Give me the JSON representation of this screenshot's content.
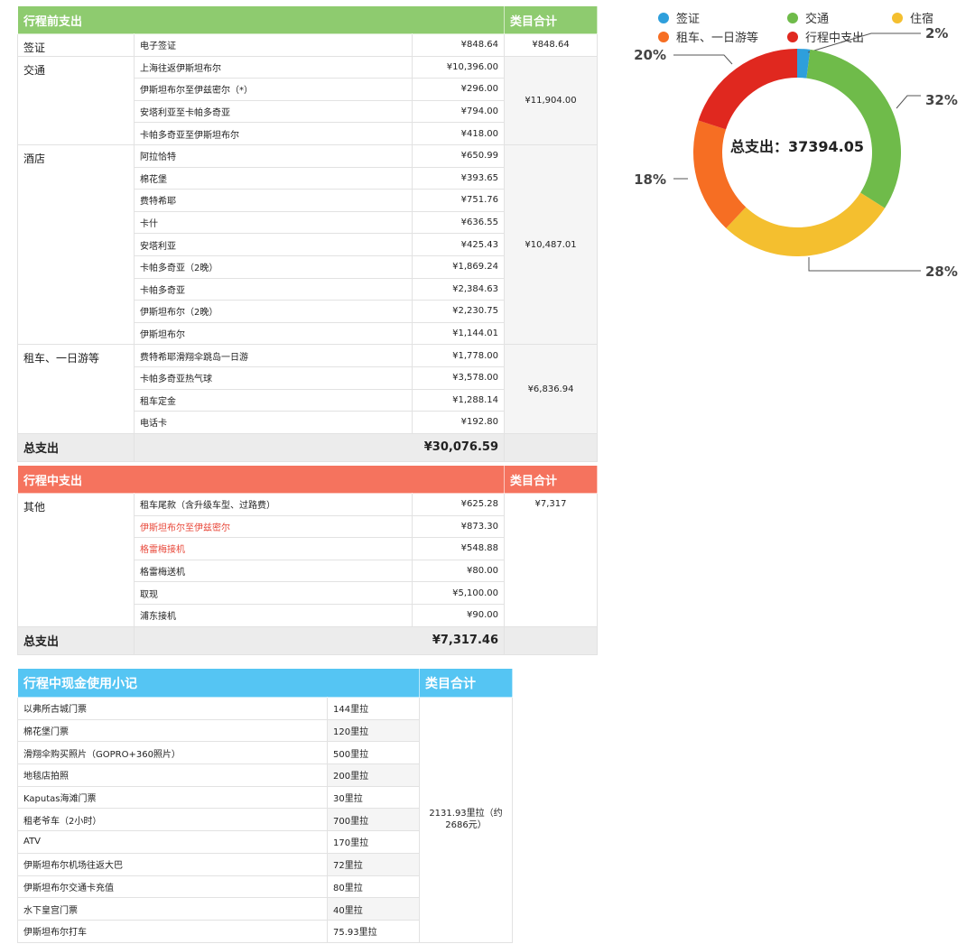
{
  "pre_trip": {
    "header": "行程前支出",
    "sum_header": "类目合计",
    "groups": [
      {
        "category": "签证",
        "sum": "¥848.64",
        "items": [
          {
            "name": "电子签证",
            "amount": "¥848.64"
          }
        ]
      },
      {
        "category": "交通",
        "sum": "¥11,904.00",
        "items": [
          {
            "name": "上海往返伊斯坦布尔",
            "amount": "¥10,396.00"
          },
          {
            "name": "伊斯坦布尔至伊兹密尔（*）",
            "amount": "¥296.00"
          },
          {
            "name": "安塔利亚至卡帕多奇亚",
            "amount": "¥794.00"
          },
          {
            "name": "卡帕多奇亚至伊斯坦布尔",
            "amount": "¥418.00"
          }
        ]
      },
      {
        "category": "酒店",
        "sum": "¥10,487.01",
        "items": [
          {
            "name": "阿拉恰特",
            "amount": "¥650.99"
          },
          {
            "name": "棉花堡",
            "amount": "¥393.65"
          },
          {
            "name": "费特希耶",
            "amount": "¥751.76"
          },
          {
            "name": "卡什",
            "amount": "¥636.55"
          },
          {
            "name": "安塔利亚",
            "amount": "¥425.43"
          },
          {
            "name": "卡帕多奇亚（2晚）",
            "amount": "¥1,869.24"
          },
          {
            "name": "卡帕多奇亚",
            "amount": "¥2,384.63"
          },
          {
            "name": "伊斯坦布尔（2晚）",
            "amount": "¥2,230.75"
          },
          {
            "name": "伊斯坦布尔",
            "amount": "¥1,144.01"
          }
        ]
      },
      {
        "category": "租车、一日游等",
        "sum": "¥6,836.94",
        "items": [
          {
            "name": "费特希耶滑翔伞跳岛一日游",
            "amount": "¥1,778.00"
          },
          {
            "name": "卡帕多奇亚热气球",
            "amount": "¥3,578.00"
          },
          {
            "name": "租车定金",
            "amount": "¥1,288.14"
          },
          {
            "name": "电话卡",
            "amount": "¥192.80"
          }
        ]
      }
    ],
    "total_label": "总支出",
    "total_value": "¥30,076.59"
  },
  "in_trip": {
    "header": "行程中支出",
    "sum_header": "类目合计",
    "category": "其他",
    "sum": "¥7,317",
    "items": [
      {
        "name": "租车尾款（含升级车型、过路费）",
        "amount": "¥625.28",
        "highlight": false
      },
      {
        "name": "伊斯坦布尔至伊兹密尔",
        "amount": "¥873.30",
        "highlight": true
      },
      {
        "name": "格雷梅接机",
        "amount": "¥548.88",
        "highlight": true
      },
      {
        "name": "格雷梅送机",
        "amount": "¥80.00",
        "highlight": false
      },
      {
        "name": "取现",
        "amount": "¥5,100.00",
        "highlight": false
      },
      {
        "name": "浦东接机",
        "amount": "¥90.00",
        "highlight": false
      }
    ],
    "total_label": "总支出",
    "total_value": "¥7,317.46"
  },
  "cash": {
    "header": "行程中现金使用小记",
    "sum_header": "类目合计",
    "sum": "2131.93里拉（约2686元）",
    "items": [
      {
        "name": "以弗所古城门票",
        "amount": "144里拉"
      },
      {
        "name": "棉花堡门票",
        "amount": "120里拉"
      },
      {
        "name": "滑翔伞购买照片（GOPRO+360照片）",
        "amount": "500里拉"
      },
      {
        "name": "地毯店拍照",
        "amount": "200里拉"
      },
      {
        "name": "Kaputas海滩门票",
        "amount": "30里拉"
      },
      {
        "name": "租老爷车（2小时）",
        "amount": "700里拉"
      },
      {
        "name": "ATV",
        "amount": "170里拉"
      },
      {
        "name": "伊斯坦布尔机场往返大巴",
        "amount": "72里拉"
      },
      {
        "name": "伊斯坦布尔交通卡充值",
        "amount": "80里拉"
      },
      {
        "name": "水下皇宫门票",
        "amount": "40里拉"
      },
      {
        "name": "伊斯坦布尔打车",
        "amount": "75.93里拉"
      }
    ]
  },
  "chart_data": {
    "type": "pie",
    "center_label": "总支出：37394.05",
    "categories": [
      "签证",
      "交通",
      "住宿",
      "租车、一日游等",
      "行程中支出"
    ],
    "values": [
      2,
      32,
      28,
      18,
      20
    ],
    "value_labels": [
      "2%",
      "32%",
      "28%",
      "18%",
      "20%"
    ],
    "colors": [
      "#2e9fdc",
      "#6fbb4a",
      "#f4bf2f",
      "#f66e23",
      "#e0281f"
    ],
    "legend_position": "top"
  }
}
